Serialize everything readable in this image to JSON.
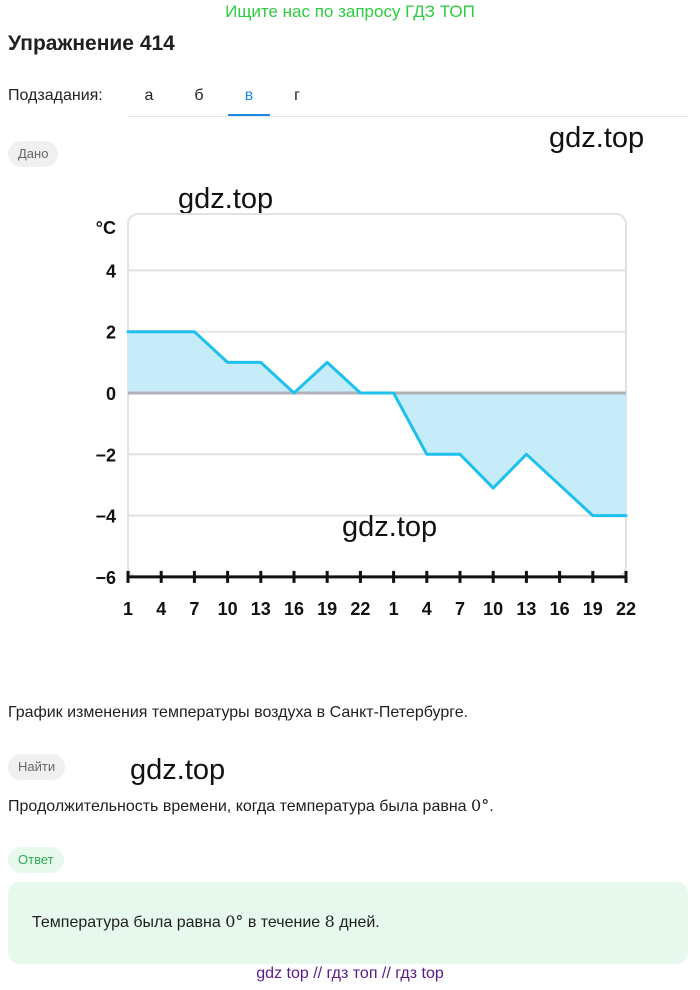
{
  "banner": "Ищите нас по запросу ГДЗ ТОП",
  "exercise_title": "Упражнение 414",
  "subtasks": {
    "label": "Подзадания:",
    "items": [
      "а",
      "б",
      "в",
      "г"
    ],
    "active_index": 2
  },
  "given_label": "Дано",
  "watermarks": [
    "gdz.top",
    "gdz.top",
    "gdz.top",
    "gdz.top"
  ],
  "chart_data": {
    "type": "area",
    "ylabel": "°C",
    "ylim": [
      -6,
      5
    ],
    "yticks": [
      4,
      2,
      0,
      -2,
      -4,
      -6
    ],
    "ytick_labels": [
      "4",
      "2",
      "0",
      "−2",
      "−4",
      "−6"
    ],
    "xtick_labels": [
      "1",
      "4",
      "7",
      "10",
      "13",
      "16",
      "19",
      "22",
      "1",
      "4",
      "7",
      "10",
      "13",
      "16",
      "19",
      "22"
    ],
    "x": [
      0,
      1,
      2,
      3,
      4,
      5,
      6,
      7,
      8,
      9,
      10,
      11,
      12,
      13,
      14,
      15
    ],
    "values": [
      2,
      2,
      2,
      1,
      1,
      0,
      1,
      0,
      0,
      -2,
      -2,
      -3.1,
      -2,
      -3,
      -4,
      -4
    ],
    "grid": true,
    "colors": {
      "line": "#1ec0ee",
      "fill": "#c6ecfa",
      "zero_line": "#b0b0b8",
      "grid": "#e2e2e2",
      "axis": "#111111"
    }
  },
  "description": "График изменения температуры воздуха в Санкт-Петербурге.",
  "find_label": "Найти",
  "find_text": "Продолжительность времени, когда температура была равна",
  "find_math": "0°",
  "find_end": ".",
  "answer_label": "Ответ",
  "answer": {
    "prefix": "Температура была равна",
    "value_math": "0°",
    "middle": "в течение",
    "days_math": "8",
    "suffix": "дней."
  },
  "footer": "gdz top  //  гдз топ  //  гдз top"
}
